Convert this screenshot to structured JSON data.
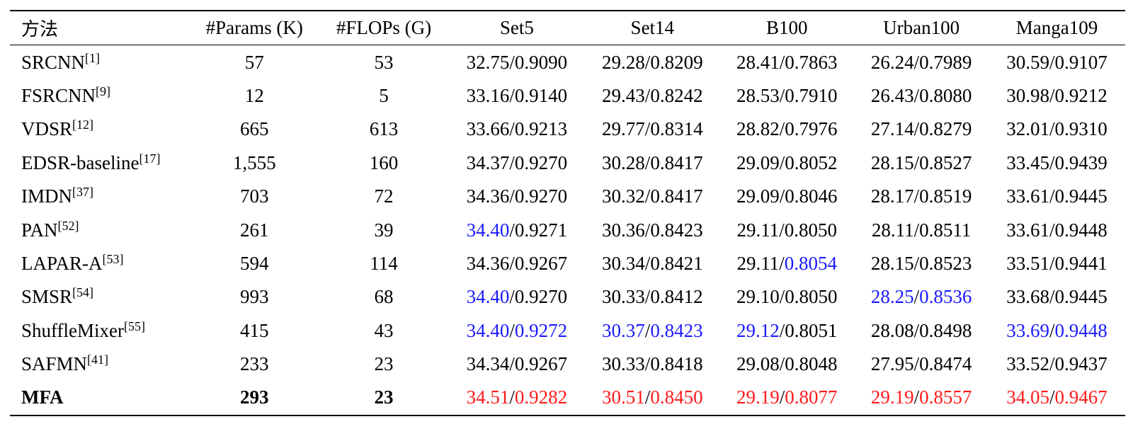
{
  "columns": [
    "方法",
    "#Params (K)",
    "#FLOPs (G)",
    "Set5",
    "Set14",
    "B100",
    "Urban100",
    "Manga109"
  ],
  "rows": [
    {
      "method": "SRCNN",
      "ref": "[1]",
      "params": "57",
      "flops": "53",
      "metrics": [
        {
          "psnr": "32.75",
          "ssim": "0.9090",
          "psnr_color": "black",
          "ssim_color": "black"
        },
        {
          "psnr": "29.28",
          "ssim": "0.8209",
          "psnr_color": "black",
          "ssim_color": "black"
        },
        {
          "psnr": "28.41",
          "ssim": "0.7863",
          "psnr_color": "black",
          "ssim_color": "black"
        },
        {
          "psnr": "26.24",
          "ssim": "0.7989",
          "psnr_color": "black",
          "ssim_color": "black"
        },
        {
          "psnr": "30.59",
          "ssim": "0.9107",
          "psnr_color": "black",
          "ssim_color": "black"
        }
      ]
    },
    {
      "method": "FSRCNN",
      "ref": "[9]",
      "params": "12",
      "flops": "5",
      "metrics": [
        {
          "psnr": "33.16",
          "ssim": "0.9140",
          "psnr_color": "black",
          "ssim_color": "black"
        },
        {
          "psnr": "29.43",
          "ssim": "0.8242",
          "psnr_color": "black",
          "ssim_color": "black"
        },
        {
          "psnr": "28.53",
          "ssim": "0.7910",
          "psnr_color": "black",
          "ssim_color": "black"
        },
        {
          "psnr": "26.43",
          "ssim": "0.8080",
          "psnr_color": "black",
          "ssim_color": "black"
        },
        {
          "psnr": "30.98",
          "ssim": "0.9212",
          "psnr_color": "black",
          "ssim_color": "black"
        }
      ]
    },
    {
      "method": "VDSR",
      "ref": "[12]",
      "params": "665",
      "flops": "613",
      "metrics": [
        {
          "psnr": "33.66",
          "ssim": "0.9213",
          "psnr_color": "black",
          "ssim_color": "black"
        },
        {
          "psnr": "29.77",
          "ssim": "0.8314",
          "psnr_color": "black",
          "ssim_color": "black"
        },
        {
          "psnr": "28.82",
          "ssim": "0.7976",
          "psnr_color": "black",
          "ssim_color": "black"
        },
        {
          "psnr": "27.14",
          "ssim": "0.8279",
          "psnr_color": "black",
          "ssim_color": "black"
        },
        {
          "psnr": "32.01",
          "ssim": "0.9310",
          "psnr_color": "black",
          "ssim_color": "black"
        }
      ]
    },
    {
      "method": "EDSR-baseline",
      "ref": "[17]",
      "params": "1,555",
      "flops": "160",
      "metrics": [
        {
          "psnr": "34.37",
          "ssim": "0.9270",
          "psnr_color": "black",
          "ssim_color": "black"
        },
        {
          "psnr": "30.28",
          "ssim": "0.8417",
          "psnr_color": "black",
          "ssim_color": "black"
        },
        {
          "psnr": "29.09",
          "ssim": "0.8052",
          "psnr_color": "black",
          "ssim_color": "black"
        },
        {
          "psnr": "28.15",
          "ssim": "0.8527",
          "psnr_color": "black",
          "ssim_color": "black"
        },
        {
          "psnr": "33.45",
          "ssim": "0.9439",
          "psnr_color": "black",
          "ssim_color": "black"
        }
      ]
    },
    {
      "method": "IMDN",
      "ref": "[37]",
      "params": "703",
      "flops": "72",
      "metrics": [
        {
          "psnr": "34.36",
          "ssim": "0.9270",
          "psnr_color": "black",
          "ssim_color": "black"
        },
        {
          "psnr": "30.32",
          "ssim": "0.8417",
          "psnr_color": "black",
          "ssim_color": "black"
        },
        {
          "psnr": "29.09",
          "ssim": "0.8046",
          "psnr_color": "black",
          "ssim_color": "black"
        },
        {
          "psnr": "28.17",
          "ssim": "0.8519",
          "psnr_color": "black",
          "ssim_color": "black"
        },
        {
          "psnr": "33.61",
          "ssim": "0.9445",
          "psnr_color": "black",
          "ssim_color": "black"
        }
      ]
    },
    {
      "method": "PAN",
      "ref": "[52]",
      "params": "261",
      "flops": "39",
      "metrics": [
        {
          "psnr": "34.40",
          "ssim": "0.9271",
          "psnr_color": "blue",
          "ssim_color": "black"
        },
        {
          "psnr": "30.36",
          "ssim": "0.8423",
          "psnr_color": "black",
          "ssim_color": "black"
        },
        {
          "psnr": "29.11",
          "ssim": "0.8050",
          "psnr_color": "black",
          "ssim_color": "black"
        },
        {
          "psnr": "28.11",
          "ssim": "0.8511",
          "psnr_color": "black",
          "ssim_color": "black"
        },
        {
          "psnr": "33.61",
          "ssim": "0.9448",
          "psnr_color": "black",
          "ssim_color": "black"
        }
      ]
    },
    {
      "method": "LAPAR-A",
      "ref": "[53]",
      "params": "594",
      "flops": "114",
      "metrics": [
        {
          "psnr": "34.36",
          "ssim": "0.9267",
          "psnr_color": "black",
          "ssim_color": "black"
        },
        {
          "psnr": "30.34",
          "ssim": "0.8421",
          "psnr_color": "black",
          "ssim_color": "black"
        },
        {
          "psnr": "29.11",
          "ssim": "0.8054",
          "psnr_color": "black",
          "ssim_color": "blue"
        },
        {
          "psnr": "28.15",
          "ssim": "0.8523",
          "psnr_color": "black",
          "ssim_color": "black"
        },
        {
          "psnr": "33.51",
          "ssim": "0.9441",
          "psnr_color": "black",
          "ssim_color": "black"
        }
      ]
    },
    {
      "method": "SMSR",
      "ref": "[54]",
      "params": "993",
      "flops": "68",
      "metrics": [
        {
          "psnr": "34.40",
          "ssim": "0.9270",
          "psnr_color": "blue",
          "ssim_color": "black"
        },
        {
          "psnr": "30.33",
          "ssim": "0.8412",
          "psnr_color": "black",
          "ssim_color": "black"
        },
        {
          "psnr": "29.10",
          "ssim": "0.8050",
          "psnr_color": "black",
          "ssim_color": "black"
        },
        {
          "psnr": "28.25",
          "ssim": "0.8536",
          "psnr_color": "blue",
          "ssim_color": "blue"
        },
        {
          "psnr": "33.68",
          "ssim": "0.9445",
          "psnr_color": "black",
          "ssim_color": "black"
        }
      ]
    },
    {
      "method": "ShuffleMixer",
      "ref": "[55]",
      "params": "415",
      "flops": "43",
      "metrics": [
        {
          "psnr": "34.40",
          "ssim": "0.9272",
          "psnr_color": "blue",
          "ssim_color": "blue"
        },
        {
          "psnr": "30.37",
          "ssim": "0.8423",
          "psnr_color": "blue",
          "ssim_color": "blue"
        },
        {
          "psnr": "29.12",
          "ssim": "0.8051",
          "psnr_color": "blue",
          "ssim_color": "black"
        },
        {
          "psnr": "28.08",
          "ssim": "0.8498",
          "psnr_color": "black",
          "ssim_color": "black"
        },
        {
          "psnr": "33.69",
          "ssim": "0.9448",
          "psnr_color": "blue",
          "ssim_color": "blue"
        }
      ]
    },
    {
      "method": "SAFMN",
      "ref": "[41]",
      "params": "233",
      "flops": "23",
      "metrics": [
        {
          "psnr": "34.34",
          "ssim": "0.9267",
          "psnr_color": "black",
          "ssim_color": "black"
        },
        {
          "psnr": "30.33",
          "ssim": "0.8418",
          "psnr_color": "black",
          "ssim_color": "black"
        },
        {
          "psnr": "29.08",
          "ssim": "0.8048",
          "psnr_color": "black",
          "ssim_color": "black"
        },
        {
          "psnr": "27.95",
          "ssim": "0.8474",
          "psnr_color": "black",
          "ssim_color": "black"
        },
        {
          "psnr": "33.52",
          "ssim": "0.9437",
          "psnr_color": "black",
          "ssim_color": "black"
        }
      ]
    },
    {
      "method": "MFA",
      "ref": "",
      "params": "293",
      "flops": "23",
      "bold": true,
      "metrics": [
        {
          "psnr": "34.51",
          "ssim": "0.9282",
          "psnr_color": "red",
          "ssim_color": "red"
        },
        {
          "psnr": "30.51",
          "ssim": "0.8450",
          "psnr_color": "red",
          "ssim_color": "red"
        },
        {
          "psnr": "29.19",
          "ssim": "0.8077",
          "psnr_color": "red",
          "ssim_color": "red"
        },
        {
          "psnr": "29.19",
          "ssim": "0.8557",
          "psnr_color": "red",
          "ssim_color": "red"
        },
        {
          "psnr": "34.05",
          "ssim": "0.9467",
          "psnr_color": "red",
          "ssim_color": "red"
        }
      ]
    }
  ],
  "colors": {
    "blue": "#1a1aff",
    "red": "#ff1a1a",
    "black": "#000000"
  },
  "separator": "/"
}
